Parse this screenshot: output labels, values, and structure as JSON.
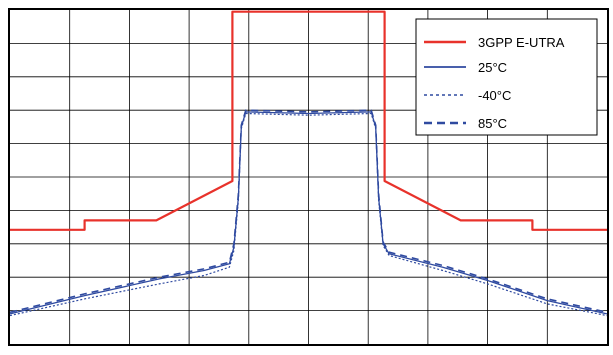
{
  "chart_data": {
    "type": "line",
    "title": "",
    "xlabel": "",
    "ylabel": "",
    "xlim": [
      -10,
      10
    ],
    "ylim": [
      -10,
      0
    ],
    "grid": true,
    "grid_divisions": {
      "x": 10,
      "y": 10
    },
    "legend_position": "top-right",
    "series": [
      {
        "name": "3GPP E-UTRA",
        "color": "#e8322b",
        "style": "solid",
        "points": [
          [
            -10,
            -6.58
          ],
          [
            -7.5,
            -6.58
          ],
          [
            -7.5,
            -6.3
          ],
          [
            -5.1,
            -6.3
          ],
          [
            -2.55,
            -5.12
          ],
          [
            -2.55,
            -0.05
          ],
          [
            2.55,
            -0.05
          ],
          [
            2.55,
            -5.12
          ],
          [
            5.1,
            -6.3
          ],
          [
            7.5,
            -6.3
          ],
          [
            7.5,
            -6.58
          ],
          [
            10,
            -6.58
          ]
        ]
      },
      {
        "name": "25°C",
        "color": "#2f4aa0",
        "style": "solid",
        "points": [
          [
            -10,
            -9.1
          ],
          [
            -7.5,
            -8.55
          ],
          [
            -5,
            -8.05
          ],
          [
            -3.5,
            -7.8
          ],
          [
            -2.65,
            -7.6
          ],
          [
            -2.5,
            -7.1
          ],
          [
            -2.35,
            -5.6
          ],
          [
            -2.25,
            -3.5
          ],
          [
            -2.1,
            -3.05
          ],
          [
            0,
            -3.1
          ],
          [
            2.1,
            -3.05
          ],
          [
            2.25,
            -3.5
          ],
          [
            2.35,
            -5.6
          ],
          [
            2.5,
            -7.0
          ],
          [
            2.7,
            -7.3
          ],
          [
            4.5,
            -7.7
          ],
          [
            6,
            -8.1
          ],
          [
            8,
            -8.7
          ],
          [
            10,
            -9.1
          ]
        ]
      },
      {
        "name": "-40°C",
        "color": "#2f4aa0",
        "style": "dotted",
        "points": [
          [
            -10,
            -9.15
          ],
          [
            -7.5,
            -8.65
          ],
          [
            -5,
            -8.2
          ],
          [
            -3.5,
            -7.95
          ],
          [
            -2.65,
            -7.7
          ],
          [
            -2.5,
            -7.2
          ],
          [
            -2.35,
            -5.7
          ],
          [
            -2.25,
            -3.55
          ],
          [
            -2.1,
            -3.1
          ],
          [
            0,
            -3.15
          ],
          [
            2.1,
            -3.1
          ],
          [
            2.25,
            -3.55
          ],
          [
            2.35,
            -5.7
          ],
          [
            2.5,
            -7.05
          ],
          [
            2.7,
            -7.35
          ],
          [
            4.5,
            -7.8
          ],
          [
            6,
            -8.2
          ],
          [
            8,
            -8.8
          ],
          [
            10,
            -9.15
          ]
        ]
      },
      {
        "name": "85°C",
        "color": "#2f4aa0",
        "style": "dashed",
        "points": [
          [
            -10,
            -9.05
          ],
          [
            -7.5,
            -8.5
          ],
          [
            -5,
            -8.0
          ],
          [
            -3.5,
            -7.75
          ],
          [
            -2.65,
            -7.55
          ],
          [
            -2.5,
            -7.0
          ],
          [
            -2.35,
            -5.5
          ],
          [
            -2.25,
            -3.45
          ],
          [
            -2.1,
            -3.0
          ],
          [
            0,
            -3.05
          ],
          [
            2.1,
            -3.0
          ],
          [
            2.25,
            -3.45
          ],
          [
            2.35,
            -5.5
          ],
          [
            2.5,
            -6.95
          ],
          [
            2.7,
            -7.25
          ],
          [
            4.5,
            -7.65
          ],
          [
            6,
            -8.05
          ],
          [
            8,
            -8.65
          ],
          [
            10,
            -9.05
          ]
        ]
      }
    ]
  }
}
